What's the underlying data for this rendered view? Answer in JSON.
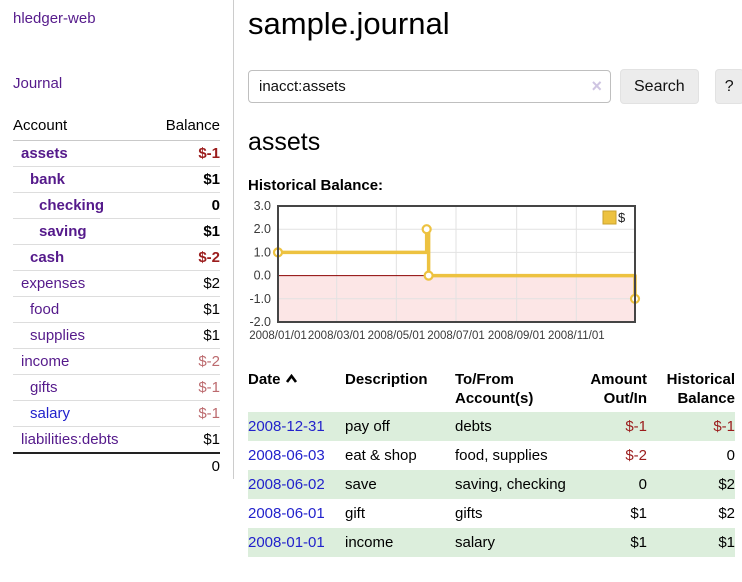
{
  "sidebar": {
    "app_link": "hledger-web",
    "journal_link": "Journal",
    "table": {
      "account_header": "Account",
      "balance_header": "Balance",
      "rows": [
        {
          "name": "assets",
          "balance": "$-1",
          "indent": 1,
          "bold": true,
          "neg": true,
          "link_color": "purple"
        },
        {
          "name": "bank",
          "balance": "$1",
          "indent": 2,
          "bold": true,
          "neg": false,
          "link_color": "purple"
        },
        {
          "name": "checking",
          "balance": "0",
          "indent": 3,
          "bold": true,
          "neg": false,
          "link_color": "purple"
        },
        {
          "name": "saving",
          "balance": "$1",
          "indent": 3,
          "bold": true,
          "neg": false,
          "link_color": "purple"
        },
        {
          "name": "cash",
          "balance": "$-2",
          "indent": 2,
          "bold": true,
          "neg": true,
          "link_color": "purple"
        },
        {
          "name": "expenses",
          "balance": "$2",
          "indent": 1,
          "bold": false,
          "neg": false,
          "link_color": "purple"
        },
        {
          "name": "food",
          "balance": "$1",
          "indent": 2,
          "bold": false,
          "neg": false,
          "link_color": "purple"
        },
        {
          "name": "supplies",
          "balance": "$1",
          "indent": 2,
          "bold": false,
          "neg": false,
          "link_color": "purple"
        },
        {
          "name": "income",
          "balance": "$-2",
          "indent": 1,
          "bold": false,
          "neg": true,
          "link_color": "purple"
        },
        {
          "name": "gifts",
          "balance": "$-1",
          "indent": 2,
          "bold": false,
          "neg": true,
          "link_color": "purple"
        },
        {
          "name": "salary",
          "balance": "$-1",
          "indent": 2,
          "bold": false,
          "neg": true,
          "link_color": "blue"
        },
        {
          "name": "liabilities:debts",
          "balance": "$1",
          "indent": 1,
          "bold": false,
          "neg": false,
          "link_color": "purple"
        }
      ],
      "total": "0"
    }
  },
  "header": {
    "title": "sample.journal"
  },
  "search": {
    "value": "inacct:assets",
    "clear_icon": "×",
    "button": "Search",
    "help_button": "?"
  },
  "account_page": {
    "heading": "assets",
    "chart_title": "Historical Balance:"
  },
  "chart_data": {
    "type": "line",
    "title": "Historical Balance",
    "series": [
      {
        "name": "$",
        "points": [
          {
            "date": "2008-01-01",
            "value": 1
          },
          {
            "date": "2008-06-01",
            "value": 2
          },
          {
            "date": "2008-06-03",
            "value": 0
          },
          {
            "date": "2008-12-31",
            "value": -1
          }
        ],
        "step": true
      }
    ],
    "xlim": [
      "2008-01-01",
      "2008-12-31"
    ],
    "ylim": [
      -2.0,
      3.0
    ],
    "yticks": [
      -2.0,
      -1.0,
      0.0,
      1.0,
      2.0,
      3.0
    ],
    "xticks": [
      {
        "date": "2008-01-01",
        "label": "2008/01/01"
      },
      {
        "date": "2008-03-01",
        "label": "2008/03/01"
      },
      {
        "date": "2008-05-01",
        "label": "2008/05/01"
      },
      {
        "date": "2008-07-01",
        "label": "2008/07/01"
      },
      {
        "date": "2008-09-01",
        "label": "2008/09/01"
      },
      {
        "date": "2008-11-01",
        "label": "2008/11/01"
      }
    ],
    "grid": true,
    "legend_position": "top-right",
    "colors": {
      "line": "#edc240",
      "marker_fill": "#ffffff",
      "negative_region": "rgba(235,60,60,0.13)",
      "zero_line": "#8b0000",
      "plot_border": "#454545",
      "gridline": "#e2e2e2",
      "tick_text": "#3a3a3a"
    }
  },
  "register": {
    "headers": {
      "date": "Date",
      "description": "Description",
      "tofrom_line1": "To/From",
      "tofrom_line2": "Account(s)",
      "amount_line1": "Amount",
      "amount_line2": "Out/In",
      "balance_line1": "Historical",
      "balance_line2": "Balance"
    },
    "rows": [
      {
        "date": "2008-12-31",
        "description": "pay off",
        "accounts": "debts",
        "amount": "$-1",
        "amount_neg": true,
        "balance": "$-1",
        "balance_neg": true
      },
      {
        "date": "2008-06-03",
        "description": "eat & shop",
        "accounts": "food, supplies",
        "amount": "$-2",
        "amount_neg": true,
        "balance": "0",
        "balance_neg": false
      },
      {
        "date": "2008-06-02",
        "description": "save",
        "accounts": "saving, checking",
        "amount": "0",
        "amount_neg": false,
        "balance": "$2",
        "balance_neg": false
      },
      {
        "date": "2008-06-01",
        "description": "gift",
        "accounts": "gifts",
        "amount": "$1",
        "amount_neg": false,
        "balance": "$2",
        "balance_neg": false
      },
      {
        "date": "2008-01-01",
        "description": "income",
        "accounts": "salary",
        "amount": "$1",
        "amount_neg": false,
        "balance": "$1",
        "balance_neg": false
      }
    ]
  }
}
